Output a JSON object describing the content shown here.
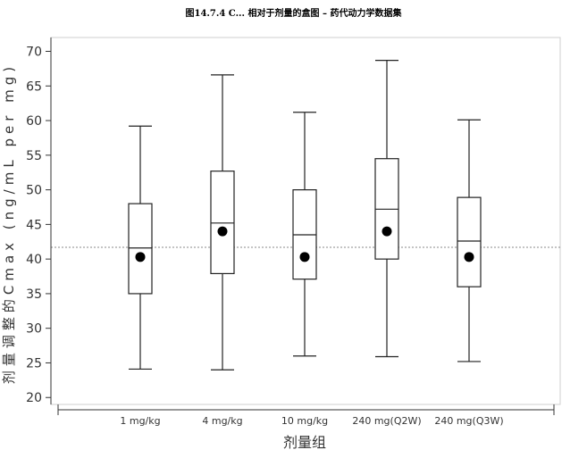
{
  "chart_data": {
    "type": "boxplot",
    "title": "图14.7.4 C... 相对于剂量的盒图 – 药代动力学数据集",
    "xlabel": "剂量组",
    "ylabel": "剂量调整的Cmax (ng/mL per mg)",
    "categories": [
      "1 mg/kg",
      "4 mg/kg",
      "10 mg/kg",
      "240 mg(Q2W)",
      "240 mg(Q3W)"
    ],
    "boxes": [
      {
        "category": "1 mg/kg",
        "min": 24.1,
        "q1": 35.0,
        "median": 41.6,
        "q3": 48.0,
        "max": 59.2,
        "mean": 40.3
      },
      {
        "category": "4 mg/kg",
        "min": 24.0,
        "q1": 37.9,
        "median": 45.2,
        "q3": 52.7,
        "max": 66.6,
        "mean": 44.0
      },
      {
        "category": "10 mg/kg",
        "min": 26.0,
        "q1": 37.1,
        "median": 43.5,
        "q3": 50.0,
        "max": 61.2,
        "mean": 40.3
      },
      {
        "category": "240 mg(Q2W)",
        "min": 25.9,
        "q1": 40.0,
        "median": 47.2,
        "q3": 54.5,
        "max": 68.7,
        "mean": 44.0
      },
      {
        "category": "240 mg(Q3W)",
        "min": 25.2,
        "q1": 36.0,
        "median": 42.6,
        "q3": 48.9,
        "max": 60.1,
        "mean": 40.3
      }
    ],
    "reference_line": 41.7,
    "ylim": [
      19,
      72
    ],
    "yticks": [
      20,
      25,
      30,
      35,
      40,
      45,
      50,
      55,
      60,
      65,
      70
    ],
    "grid": false,
    "legend": "none"
  }
}
